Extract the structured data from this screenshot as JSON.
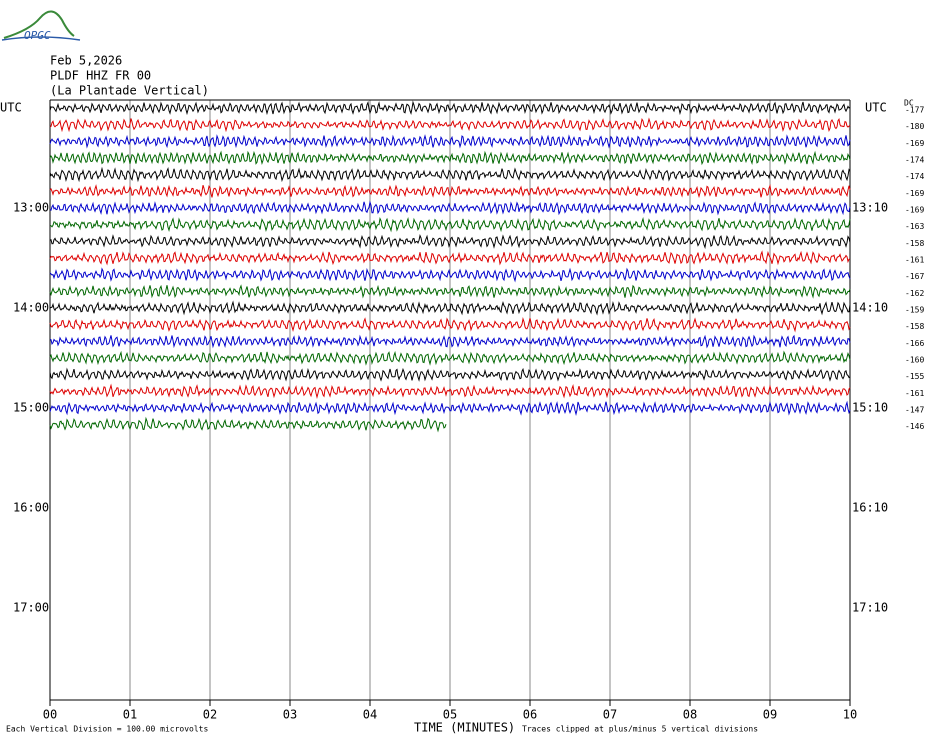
{
  "header": {
    "logo": "OPGC",
    "date": "Feb 5,2026",
    "station": "PLDF HHZ FR 00",
    "site": "(La Plantade Vertical)"
  },
  "left_labels": [
    "UTC",
    "13:00",
    "14:00",
    "15:00",
    "16:00",
    "17:00"
  ],
  "right_labels": [
    "UTC",
    "13:10",
    "14:10",
    "15:10",
    "16:10",
    "17:10"
  ],
  "dc_title": "DC",
  "dc_values": [
    "-177",
    "-180",
    "-169",
    "-174",
    "-174",
    "-169",
    "-169",
    "-163",
    "-158",
    "-161",
    "-167",
    "-162",
    "-159",
    "-158",
    "-166",
    "-160",
    "-155",
    "-161",
    "-147",
    "-146"
  ],
  "trace_colors": [
    "#000000",
    "#dd0000",
    "#0000cc",
    "#006600"
  ],
  "last_trace_end": 4.95,
  "x_ticks": [
    "00",
    "01",
    "02",
    "03",
    "04",
    "05",
    "06",
    "07",
    "08",
    "09",
    "10"
  ],
  "footer": {
    "scale": "Each Vertical Division =  100.00 microvolts",
    "x_label": "TIME (MINUTES)",
    "clip_note": "Traces clipped at plus/minus 5 vertical divisions"
  }
}
